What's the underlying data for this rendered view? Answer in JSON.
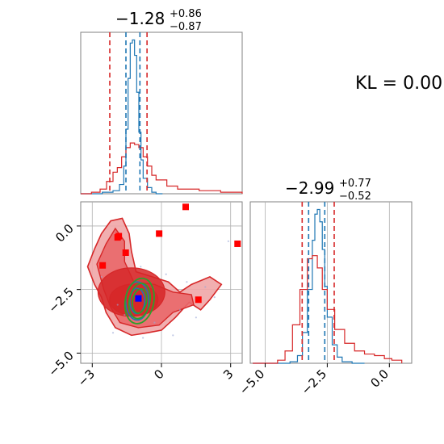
{
  "colors": {
    "red": "#d62728",
    "blue": "#1f77b4",
    "green": "#2ca02c",
    "marker_red": "#ff0000",
    "marker_blue": "#0000ff",
    "grid": "#b0b0b0",
    "spine": "#808080"
  },
  "kl_text": "KL = 0.00",
  "panel_titles": {
    "p1": {
      "base": "−1.28",
      "sup": "+0.86",
      "sub": "−0.87"
    },
    "p2": {
      "base": "−2.99",
      "sup": "+0.77",
      "sub": "−0.52"
    }
  },
  "chart_data": [
    {
      "type": "histogram",
      "panel": "marginal-p1",
      "xlim": [
        -3.5,
        4.0
      ],
      "grid": true,
      "series": [
        {
          "color": "#1f77b4",
          "x": [
            -3.5,
            -3.0,
            -2.5,
            -2.0,
            -1.7,
            -1.5,
            -1.4,
            -1.3,
            -1.2,
            -1.1,
            -1.0,
            -0.9,
            -0.8,
            -0.7,
            -0.6,
            -0.4,
            -0.2,
            0.0,
            0.3
          ],
          "y": [
            0,
            0,
            0.01,
            0.02,
            0.06,
            0.18,
            0.42,
            0.75,
            0.98,
            1.0,
            0.9,
            0.66,
            0.4,
            0.22,
            0.1,
            0.04,
            0.01,
            0,
            0
          ]
        },
        {
          "color": "#d62728",
          "x": [
            -3.5,
            -3.0,
            -2.6,
            -2.3,
            -2.0,
            -1.8,
            -1.6,
            -1.4,
            -1.2,
            -1.0,
            -0.8,
            -0.6,
            -0.4,
            -0.2,
            0.0,
            0.5,
            1.0,
            1.5,
            2.0,
            2.5,
            3.0,
            3.5,
            4.0
          ],
          "y": [
            0,
            0.01,
            0.03,
            0.08,
            0.14,
            0.17,
            0.24,
            0.3,
            0.33,
            0.32,
            0.3,
            0.24,
            0.18,
            0.12,
            0.09,
            0.05,
            0.03,
            0.03,
            0.02,
            0.02,
            0.01,
            0.01,
            0
          ]
        }
      ],
      "vlines": [
        {
          "x": -2.15,
          "color": "#d62728"
        },
        {
          "x": -0.42,
          "color": "#d62728"
        },
        {
          "x": -1.4,
          "color": "#1f77b4"
        },
        {
          "x": -0.75,
          "color": "#1f77b4"
        }
      ]
    },
    {
      "type": "histogram",
      "panel": "marginal-p2",
      "xlim": [
        -5.6,
        0.9
      ],
      "xticks": [
        -5.0,
        -2.5,
        0.0
      ],
      "xtick_labels": [
        "−5.0",
        "−2.5",
        "0.0"
      ],
      "grid": true,
      "series": [
        {
          "color": "#1f77b4",
          "x": [
            -5.5,
            -4.5,
            -4.0,
            -3.7,
            -3.5,
            -3.3,
            -3.1,
            -3.0,
            -2.9,
            -2.8,
            -2.7,
            -2.6,
            -2.5,
            -2.3,
            -2.1,
            -1.9,
            -1.5,
            -1.0
          ],
          "y": [
            0,
            0,
            0.01,
            0.05,
            0.2,
            0.48,
            0.8,
            0.97,
            1.0,
            0.92,
            0.74,
            0.5,
            0.3,
            0.12,
            0.04,
            0.01,
            0,
            0
          ]
        },
        {
          "color": "#d62728",
          "x": [
            -5.5,
            -5.0,
            -4.5,
            -4.2,
            -3.9,
            -3.6,
            -3.3,
            -3.1,
            -2.9,
            -2.7,
            -2.5,
            -2.2,
            -1.8,
            -1.4,
            -1.0,
            -0.6,
            -0.2,
            0.1,
            0.5
          ],
          "y": [
            0,
            0,
            0.02,
            0.08,
            0.25,
            0.48,
            0.68,
            0.7,
            0.62,
            0.48,
            0.35,
            0.22,
            0.13,
            0.08,
            0.06,
            0.05,
            0.03,
            0.02,
            0
          ]
        }
      ],
      "vlines": [
        {
          "x": -3.51,
          "color": "#d62728"
        },
        {
          "x": -2.22,
          "color": "#d62728"
        },
        {
          "x": -3.25,
          "color": "#1f77b4"
        },
        {
          "x": -2.6,
          "color": "#1f77b4"
        }
      ]
    },
    {
      "type": "scatter",
      "panel": "joint-p1-p2",
      "xlim": [
        -3.5,
        3.5
      ],
      "ylim": [
        -5.4,
        0.95
      ],
      "xticks": [
        -3,
        0,
        3
      ],
      "xtick_labels": [
        "−3",
        "0",
        "3"
      ],
      "yticks": [
        0.0,
        -2.5,
        -5.0
      ],
      "ytick_labels": [
        "0.0",
        "−2.5",
        "−5.0"
      ],
      "grid": true,
      "red_markers": [
        {
          "x": -2.55,
          "y": -1.55
        },
        {
          "x": -1.9,
          "y": -0.45
        },
        {
          "x": -1.85,
          "y": -0.4
        },
        {
          "x": -1.55,
          "y": -1.05
        },
        {
          "x": -0.1,
          "y": -0.3
        },
        {
          "x": 1.05,
          "y": 0.75
        },
        {
          "x": 3.3,
          "y": -0.7
        },
        {
          "x": 1.6,
          "y": -2.9
        }
      ],
      "blue_markers": [
        {
          "x": -1.0,
          "y": -2.85
        }
      ],
      "red_density_levels": [
        {
          "cx": -1.2,
          "cy": -2.9,
          "rx": 1.05,
          "ry": 0.62
        },
        {
          "cx": -1.3,
          "cy": -2.6,
          "rx": 1.45,
          "ry": 0.95
        }
      ],
      "green_contours": [
        {
          "cx": -0.95,
          "cy": -2.95,
          "rx": 0.62,
          "ry": 0.9,
          "rot": 10
        },
        {
          "cx": -0.95,
          "cy": -2.95,
          "rx": 0.45,
          "ry": 0.7,
          "rot": 10
        },
        {
          "cx": -0.95,
          "cy": -2.95,
          "rx": 0.3,
          "ry": 0.48,
          "rot": 10
        }
      ],
      "blue_contours": [
        {
          "cx": -1.05,
          "cy": -2.95,
          "rx": 0.5,
          "ry": 0.75
        },
        {
          "cx": -1.05,
          "cy": -2.95,
          "rx": 0.32,
          "ry": 0.5
        }
      ]
    }
  ]
}
